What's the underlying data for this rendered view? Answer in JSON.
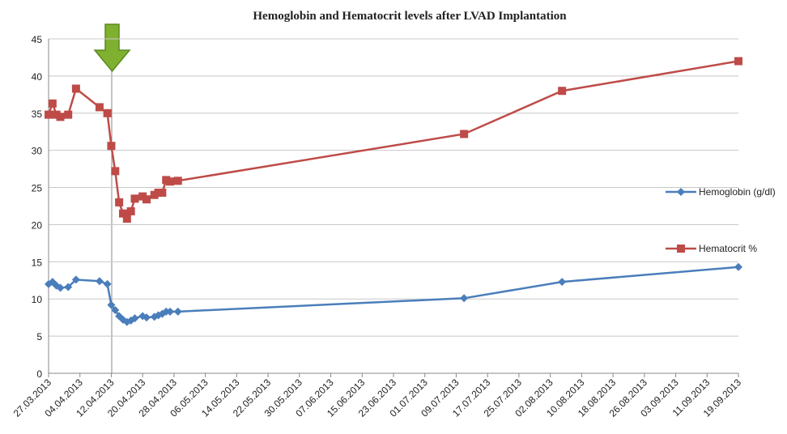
{
  "chart_data": {
    "type": "line",
    "title": "Hemoglobin  and Hematocrit  levels after LVAD Implantation",
    "x": [
      "2013-03-27",
      "2013-03-28",
      "2013-03-29",
      "2013-03-30",
      "2013-04-01",
      "2013-04-03",
      "2013-04-09",
      "2013-04-11",
      "2013-04-12",
      "2013-04-13",
      "2013-04-14",
      "2013-04-15",
      "2013-04-16",
      "2013-04-17",
      "2013-04-18",
      "2013-04-20",
      "2013-04-21",
      "2013-04-23",
      "2013-04-24",
      "2013-04-25",
      "2013-04-26",
      "2013-04-27",
      "2013-04-29",
      "2013-07-11",
      "2013-08-05",
      "2013-09-19"
    ],
    "series": [
      {
        "name": "Hemoglobin (g/dl)",
        "color": "#4a7ebb",
        "marker": "diamond",
        "values": [
          12,
          12.3,
          11.8,
          11.5,
          11.6,
          12.6,
          12.4,
          12,
          9.2,
          8.5,
          7.7,
          7.2,
          6.9,
          7.1,
          7.4,
          7.7,
          7.5,
          7.6,
          7.8,
          8,
          8.3,
          8.3,
          8.3,
          10.1,
          12.3,
          14.3
        ]
      },
      {
        "name": "Hematocrit %",
        "color": "#be4b48",
        "marker": "square",
        "values": [
          34.8,
          36.3,
          34.8,
          34.5,
          34.8,
          38.3,
          35.8,
          35,
          30.6,
          27.2,
          23,
          21.5,
          20.8,
          21.8,
          23.5,
          23.8,
          23.4,
          24,
          24.3,
          24.3,
          26,
          25.8,
          25.9,
          32.2,
          38,
          42
        ]
      }
    ],
    "xlim": [
      "2013-03-27",
      "2013-09-19"
    ],
    "xticks": [
      {
        "value": "2013-03-27",
        "label": "27.03.2013"
      },
      {
        "value": "2013-04-04",
        "label": "04.04.2013"
      },
      {
        "value": "2013-04-12",
        "label": "12.04.2013"
      },
      {
        "value": "2013-04-20",
        "label": "20.04.2013"
      },
      {
        "value": "2013-04-28",
        "label": "28.04.2013"
      },
      {
        "value": "2013-05-06",
        "label": "06.05.2013"
      },
      {
        "value": "2013-05-14",
        "label": "14.05.2013"
      },
      {
        "value": "2013-05-22",
        "label": "22.05.2013"
      },
      {
        "value": "2013-05-30",
        "label": "30.05.2013"
      },
      {
        "value": "2013-06-07",
        "label": "07.06.2013"
      },
      {
        "value": "2013-06-15",
        "label": "15.06.2013"
      },
      {
        "value": "2013-06-23",
        "label": "23.06.2013"
      },
      {
        "value": "2013-07-01",
        "label": "01.07.2013"
      },
      {
        "value": "2013-07-09",
        "label": "09.07.2013"
      },
      {
        "value": "2013-07-17",
        "label": "17.07.2013"
      },
      {
        "value": "2013-07-25",
        "label": "25.07.2013"
      },
      {
        "value": "2013-08-02",
        "label": "02.08.2013"
      },
      {
        "value": "2013-08-10",
        "label": "10.08.2013"
      },
      {
        "value": "2013-08-18",
        "label": "18.08.2013"
      },
      {
        "value": "2013-08-26",
        "label": "26.08.2013"
      },
      {
        "value": "2013-09-03",
        "label": "03.09.2013"
      },
      {
        "value": "2013-09-11",
        "label": "11.09.2013"
      },
      {
        "value": "2013-09-19",
        "label": "19.09.2013"
      }
    ],
    "ylim": [
      0,
      45
    ],
    "yticks": [
      0,
      5,
      10,
      15,
      20,
      25,
      30,
      35,
      40,
      45
    ],
    "grid": true,
    "legend": "right"
  }
}
